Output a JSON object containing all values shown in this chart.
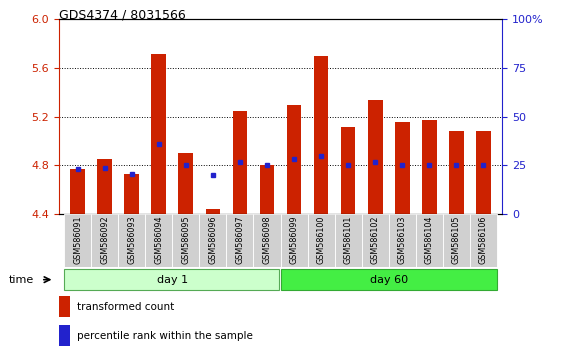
{
  "title": "GDS4374 / 8031566",
  "samples": [
    "GSM586091",
    "GSM586092",
    "GSM586093",
    "GSM586094",
    "GSM586095",
    "GSM586096",
    "GSM586097",
    "GSM586098",
    "GSM586099",
    "GSM586100",
    "GSM586101",
    "GSM586102",
    "GSM586103",
    "GSM586104",
    "GSM586105",
    "GSM586106"
  ],
  "bar_heights": [
    4.77,
    4.85,
    4.73,
    5.72,
    4.9,
    4.44,
    5.25,
    4.8,
    5.3,
    5.7,
    5.12,
    5.34,
    5.16,
    5.17,
    5.08,
    5.08
  ],
  "blue_dot_y": [
    4.77,
    4.78,
    4.73,
    4.98,
    4.8,
    4.72,
    4.83,
    4.8,
    4.85,
    4.88,
    4.8,
    4.83,
    4.8,
    4.8,
    4.8,
    4.8
  ],
  "bar_bottom": 4.4,
  "ylim": [
    4.4,
    6.0
  ],
  "yticks": [
    4.4,
    4.8,
    5.2,
    5.6,
    6.0
  ],
  "right_yticks": [
    0,
    25,
    50,
    75,
    100
  ],
  "right_ytick_labels": [
    "0",
    "25",
    "50",
    "75",
    "100%"
  ],
  "bar_color": "#cc2200",
  "blue_dot_color": "#2222cc",
  "day1_bg": "#ccffcc",
  "day60_bg": "#44ee44",
  "grid_color": "#000000",
  "tick_color_left": "#cc2200",
  "tick_color_right": "#2222cc",
  "bar_width": 0.55,
  "plot_bg": "#ffffff",
  "label_bg": "#d0d0d0",
  "n_day1": 8,
  "n_day60": 8
}
